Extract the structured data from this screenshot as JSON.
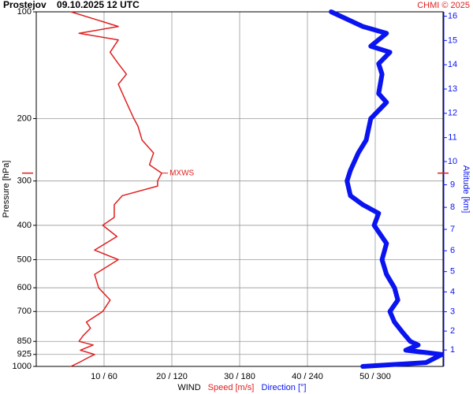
{
  "chart_data": {
    "type": "line",
    "title": "Prostejov    09.10.2025 12 UTC",
    "credit": "CHMI © 2025",
    "ylabel": "Pressure [hPa]",
    "y2label": "Altitude [km]",
    "xlabel": "WIND",
    "ylim": [
      1000,
      100
    ],
    "log_y": true,
    "yticks": [
      100,
      200,
      300,
      400,
      500,
      600,
      700,
      850,
      925,
      1000
    ],
    "y2ticks": [
      1,
      2,
      3,
      4,
      5,
      6,
      7,
      8,
      9,
      10,
      11,
      12,
      13,
      14,
      15,
      16
    ],
    "xlim": [
      0,
      60
    ],
    "x2lim": [
      0,
      360
    ],
    "xticks": [
      {
        "value": 10,
        "label": "10 / 60"
      },
      {
        "value": 20,
        "label": "20 / 120"
      },
      {
        "value": 30,
        "label": "30 / 180"
      },
      {
        "value": 40,
        "label": "40 / 240"
      },
      {
        "value": 50,
        "label": "50 / 300"
      }
    ],
    "grid": true,
    "series": [
      {
        "name": "Speed [m/s]",
        "color": "#e02020",
        "width": 1.5,
        "pressure": [
          1000,
          975,
          950,
          925,
          900,
          870,
          850,
          820,
          780,
          750,
          700,
          650,
          600,
          550,
          500,
          470,
          430,
          400,
          380,
          350,
          330,
          310,
          300,
          285,
          270,
          250,
          230,
          210,
          200,
          180,
          160,
          150,
          140,
          130,
          120,
          115,
          110,
          100
        ],
        "values": [
          5.1,
          6.3,
          7.4,
          8.6,
          6.5,
          8.4,
          6.3,
          6.9,
          8.0,
          7.4,
          9.8,
          10.9,
          9.2,
          8.6,
          12.1,
          8.6,
          11.9,
          9.8,
          11.5,
          11.5,
          12.7,
          17.9,
          17.9,
          18.5,
          16.7,
          17.3,
          15.6,
          15.0,
          14.4,
          13.3,
          12.1,
          13.3,
          12.1,
          10.9,
          12.1,
          6.3,
          12.1,
          5.1
        ]
      },
      {
        "name": "Direction [°]",
        "color": "#0a14f0",
        "width": 6,
        "axis": "x2",
        "pressure": [
          1000,
          975,
          925,
          900,
          870,
          850,
          800,
          750,
          700,
          650,
          600,
          550,
          500,
          450,
          400,
          370,
          350,
          330,
          300,
          280,
          250,
          230,
          200,
          180,
          170,
          150,
          140,
          130,
          125,
          115,
          110,
          100
        ],
        "values": [
          289,
          345,
          359,
          327,
          338,
          331,
          324,
          317,
          313,
          320,
          317,
          310,
          306,
          310,
          299,
          303,
          289,
          278,
          275,
          278,
          285,
          292,
          296,
          310,
          303,
          306,
          303,
          313,
          296,
          310,
          289,
          261
        ]
      }
    ],
    "mxws": {
      "label": "MXWS",
      "pressure": 285
    }
  }
}
